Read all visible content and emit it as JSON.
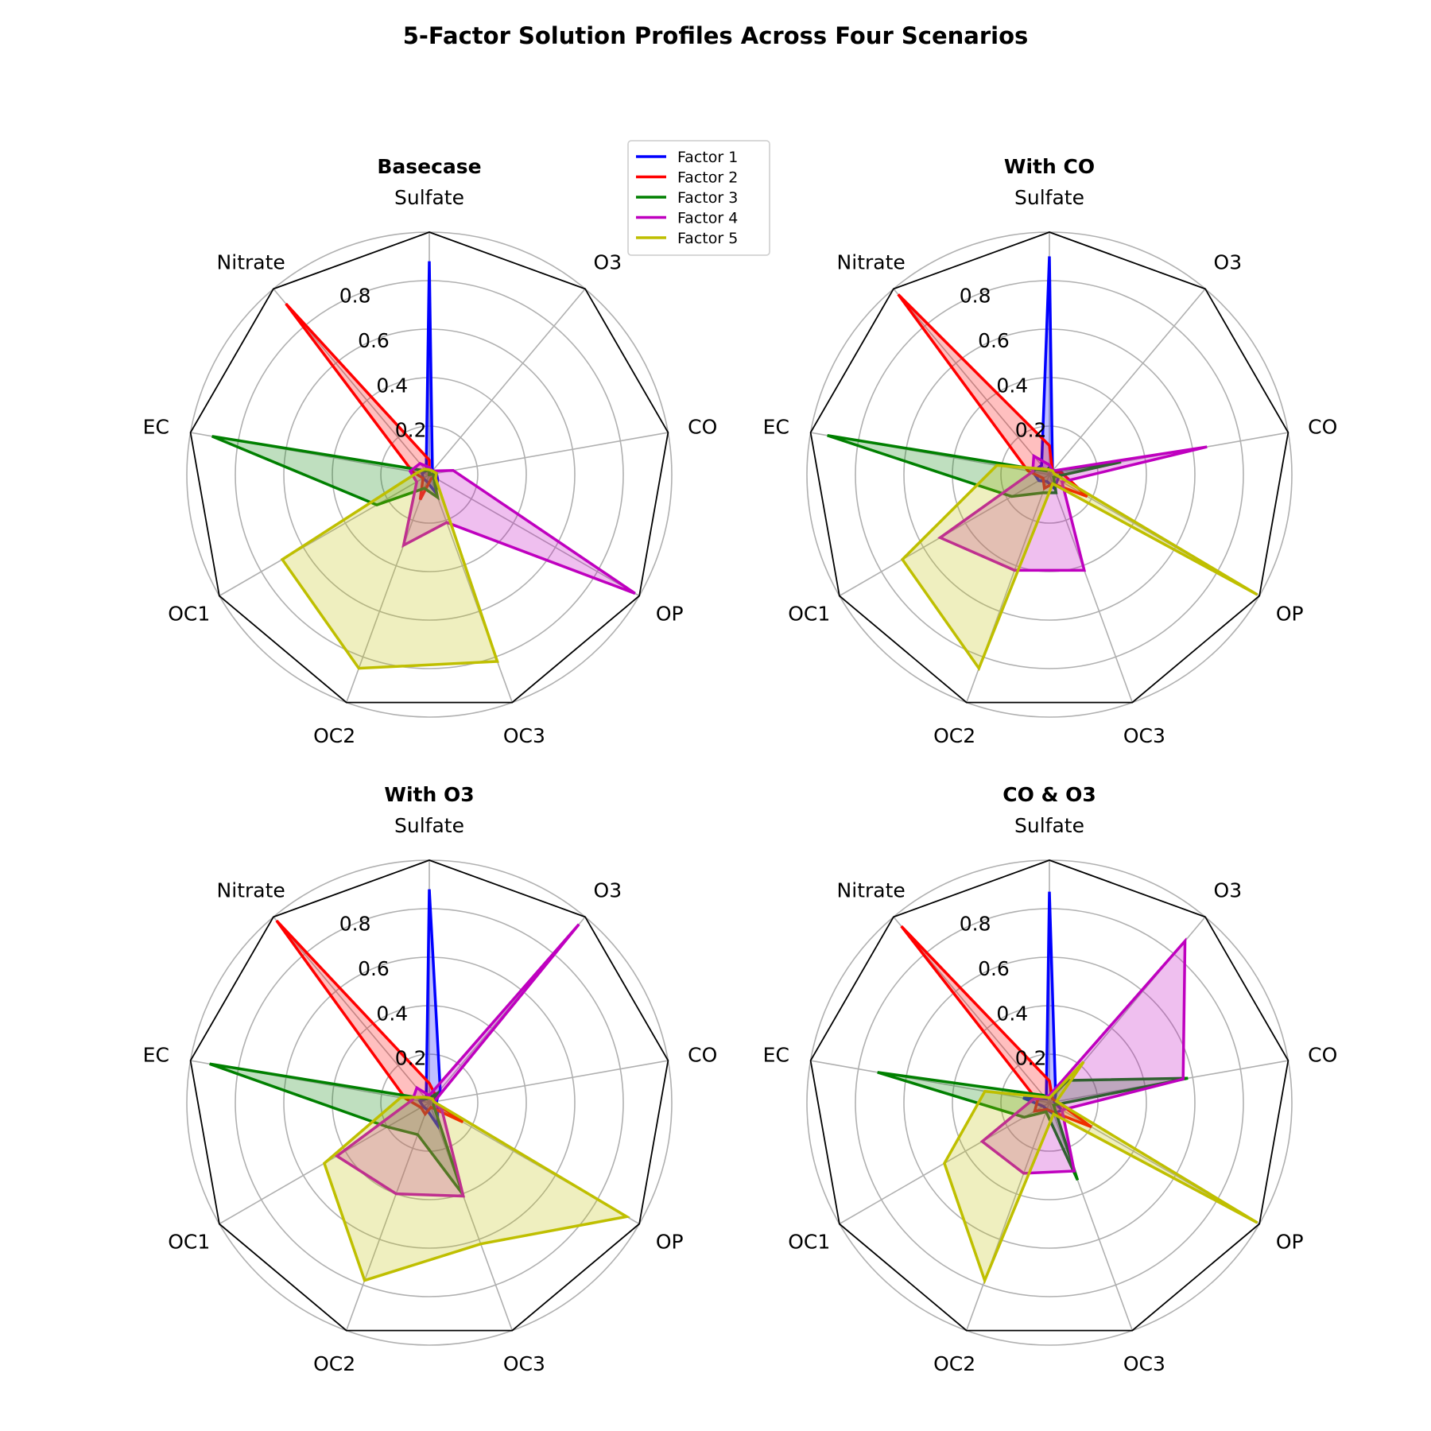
{
  "title": "5-Factor Solution Profiles Across Four Scenarios",
  "chart_data": {
    "type": "radar",
    "axes": [
      "Sulfate",
      "O3",
      "CO",
      "OP",
      "OC3",
      "OC2",
      "OC1",
      "EC",
      "Nitrate"
    ],
    "rlim": [
      0,
      1.0
    ],
    "rticks": [
      0.2,
      0.4,
      0.6,
      0.8
    ],
    "rtick_labels": [
      "0.2",
      "0.4",
      "0.6",
      "0.8"
    ],
    "grid": true,
    "legend": {
      "placement": "upper-right of first panel",
      "entries": [
        "Factor 1",
        "Factor 2",
        "Factor 3",
        "Factor 4",
        "Factor 5"
      ]
    },
    "series_colors": [
      "#0000ff",
      "#ff0000",
      "#008000",
      "#bf00bf",
      "#bfbf00"
    ],
    "panels": [
      {
        "title": "Basecase",
        "series": [
          {
            "name": "Factor 1",
            "values": [
              0.88,
              0.02,
              0.03,
              0.04,
              0.08,
              0.03,
              0.03,
              0.03,
              0.02
            ]
          },
          {
            "name": "Factor 2",
            "values": [
              0.06,
              0.0,
              0.02,
              0.02,
              0.02,
              0.11,
              0.03,
              0.07,
              0.92
            ]
          },
          {
            "name": "Factor 3",
            "values": [
              0.02,
              0.0,
              0.02,
              0.02,
              0.1,
              0.06,
              0.25,
              0.91,
              0.02
            ]
          },
          {
            "name": "Factor 4",
            "values": [
              0.03,
              0.02,
              0.1,
              0.98,
              0.21,
              0.31,
              0.06,
              0.08,
              0.06
            ]
          },
          {
            "name": "Factor 5",
            "values": [
              0.02,
              0.02,
              0.03,
              0.03,
              0.82,
              0.85,
              0.7,
              0.05,
              0.03
            ]
          }
        ]
      },
      {
        "title": "With CO",
        "series": [
          {
            "name": "Factor 1",
            "values": [
              0.9,
              0.02,
              0.05,
              0.04,
              0.06,
              0.03,
              0.05,
              0.07,
              0.05
            ]
          },
          {
            "name": "Factor 2",
            "values": [
              0.12,
              0.02,
              0.05,
              0.18,
              0.04,
              0.06,
              0.03,
              0.09,
              0.97
            ]
          },
          {
            "name": "Factor 3",
            "values": [
              0.03,
              0.02,
              0.3,
              0.02,
              0.08,
              0.08,
              0.18,
              0.93,
              0.02
            ]
          },
          {
            "name": "Factor 4",
            "values": [
              0.04,
              0.02,
              0.66,
              0.06,
              0.42,
              0.42,
              0.52,
              0.07,
              0.1
            ]
          },
          {
            "name": "Factor 5",
            "values": [
              0.02,
              0.02,
              0.02,
              0.99,
              0.04,
              0.85,
              0.7,
              0.22,
              0.03
            ]
          }
        ]
      },
      {
        "title": "With O3",
        "series": [
          {
            "name": "Factor 1",
            "values": [
              0.88,
              0.07,
              0.03,
              0.04,
              0.1,
              0.03,
              0.03,
              0.04,
              0.02
            ]
          },
          {
            "name": "Factor 2",
            "values": [
              0.08,
              0.04,
              0.02,
              0.16,
              0.02,
              0.05,
              0.04,
              0.1,
              0.98
            ]
          },
          {
            "name": "Factor 3",
            "values": [
              0.02,
              0.05,
              0.02,
              0.02,
              0.4,
              0.14,
              0.2,
              0.92,
              0.02
            ]
          },
          {
            "name": "Factor 4",
            "values": [
              0.03,
              0.96,
              0.02,
              0.06,
              0.41,
              0.4,
              0.44,
              0.07,
              0.08
            ]
          },
          {
            "name": "Factor 5",
            "values": [
              0.02,
              0.02,
              0.02,
              0.94,
              0.62,
              0.78,
              0.5,
              0.12,
              0.03
            ]
          }
        ]
      },
      {
        "title": "CO & O3",
        "series": [
          {
            "name": "Factor 1",
            "values": [
              0.87,
              0.04,
              0.02,
              0.06,
              0.05,
              0.03,
              0.03,
              0.11,
              0.02
            ]
          },
          {
            "name": "Factor 2",
            "values": [
              0.09,
              0.02,
              0.03,
              0.2,
              0.04,
              0.03,
              0.07,
              0.05,
              0.95
            ]
          },
          {
            "name": "Factor 3",
            "values": [
              0.02,
              0.12,
              0.58,
              0.02,
              0.34,
              0.04,
              0.12,
              0.72,
              0.04
            ]
          },
          {
            "name": "Factor 4",
            "values": [
              0.03,
              0.87,
              0.56,
              0.06,
              0.3,
              0.31,
              0.32,
              0.07,
              0.03
            ]
          },
          {
            "name": "Factor 5",
            "values": [
              0.02,
              0.22,
              0.03,
              0.99,
              0.05,
              0.78,
              0.5,
              0.27,
              0.03
            ]
          }
        ]
      }
    ]
  }
}
